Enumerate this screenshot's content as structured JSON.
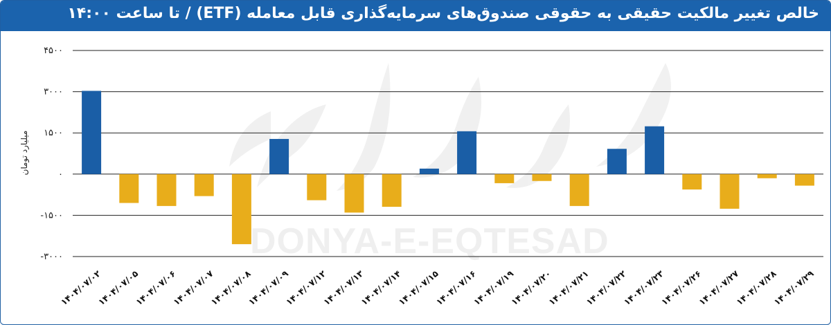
{
  "header": {
    "title": "خالص تغییر مالکیت حقیقی به حقوقی صندوق‌های سرمایه‌گذاری قابل معامله (ETF) / تا ساعت ۱۴:۰۰"
  },
  "watermark": {
    "latin": "DONYA-E-EQTESAD",
    "persian": "دنیای اقتصاد"
  },
  "colors": {
    "header_bg": "#1b63ad",
    "positive": "#1a5ea6",
    "negative": "#e8ad1b",
    "grid": "#222222"
  },
  "chart_data": {
    "type": "bar",
    "title": "خالص تغییر مالکیت حقیقی به حقوقی صندوق‌های سرمایه‌گذاری قابل معامله (ETF) / تا ساعت ۱۴:۰۰",
    "xlabel": "",
    "ylabel": "میلیارد تومان",
    "ylim": [
      -3000,
      4500
    ],
    "yticks": [
      -3000,
      -1500,
      0,
      1500,
      3000,
      4500
    ],
    "ytick_labels": [
      "-۳۰۰۰",
      "-۱۵۰۰",
      "۰",
      "۱۵۰۰",
      "۳۰۰۰",
      "۴۵۰۰"
    ],
    "grid": true,
    "legend": "none",
    "categories": [
      "۱۴۰۴/۰۷/۰۲",
      "۱۴۰۴/۰۷/۰۵",
      "۱۴۰۴/۰۷/۰۶",
      "۱۴۰۴/۰۷/۰۷",
      "۱۴۰۴/۰۷/۰۸",
      "۱۴۰۴/۰۷/۰۹",
      "۱۴۰۴/۰۷/۱۲",
      "۱۴۰۴/۰۷/۱۳",
      "۱۴۰۴/۰۷/۱۴",
      "۱۴۰۴/۰۷/۱۵",
      "۱۴۰۴/۰۷/۱۶",
      "۱۴۰۴/۰۷/۱۹",
      "۱۴۰۴/۰۷/۲۰",
      "۱۴۰۴/۰۷/۲۱",
      "۱۴۰۴/۰۷/۲۲",
      "۱۴۰۴/۰۷/۲۳",
      "۱۴۰۴/۰۷/۲۶",
      "۱۴۰۴/۰۷/۲۷",
      "۱۴۰۴/۰۷/۲۸",
      "۱۴۰۴/۰۷/۲۹"
    ],
    "values": [
      3030,
      -1050,
      -1160,
      -800,
      -2550,
      1280,
      -950,
      -1400,
      -1190,
      200,
      1560,
      -330,
      -250,
      -1160,
      920,
      1740,
      -560,
      -1260,
      -150,
      -420
    ]
  }
}
